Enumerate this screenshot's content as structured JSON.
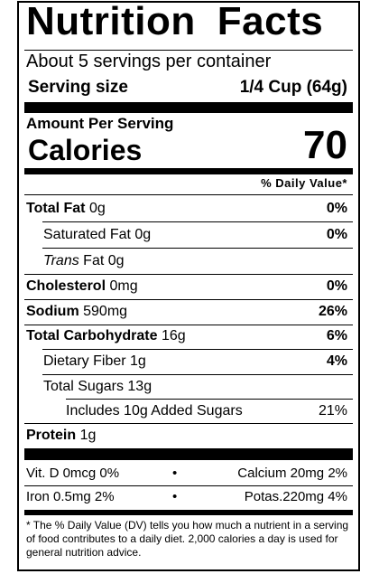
{
  "title": {
    "word1": "Nutrition",
    "word2": "Facts"
  },
  "servings_per_container": "About 5 servings per container",
  "serving_size": {
    "label": "Serving size",
    "value": "1/4 Cup (64g)"
  },
  "amount_per_serving": "Amount Per Serving",
  "calories": {
    "label": "Calories",
    "value": "70"
  },
  "daily_value_header": "% Daily Value*",
  "nutrients": {
    "total_fat": {
      "name": "Total Fat",
      "amount": "0g",
      "dv": "0%"
    },
    "saturated_fat": {
      "name": "Saturated Fat",
      "amount": "0g",
      "dv": "0%"
    },
    "trans_fat": {
      "name_italic": "Trans",
      "name_rest": "Fat",
      "amount": "0g"
    },
    "cholesterol": {
      "name": "Cholesterol",
      "amount": "0mg",
      "dv": "0%"
    },
    "sodium": {
      "name": "Sodium",
      "amount": "590mg",
      "dv": "26%"
    },
    "total_carbohydrate": {
      "name": "Total Carbohydrate",
      "amount": "16g",
      "dv": "6%"
    },
    "dietary_fiber": {
      "name": "Dietary Fiber",
      "amount": "1g",
      "dv": "4%"
    },
    "total_sugars": {
      "name": "Total Sugars",
      "amount": "13g"
    },
    "added_sugars": {
      "text": "Includes 10g Added Sugars",
      "dv": "21%"
    },
    "protein": {
      "name": "Protein",
      "amount": "1g"
    }
  },
  "vitamins": {
    "row1": {
      "left": "Vit. D 0mcg 0%",
      "right": "Calcium 20mg 2%"
    },
    "row2": {
      "left": "Iron 0.5mg 2%",
      "right": "Potas.220mg 4%"
    },
    "separator": "•"
  },
  "footnote": "* The % Daily Value (DV) tells you how much a nutrient in a serving of food contributes to a daily diet. 2,000 calories a day is used for general nutrition advice."
}
